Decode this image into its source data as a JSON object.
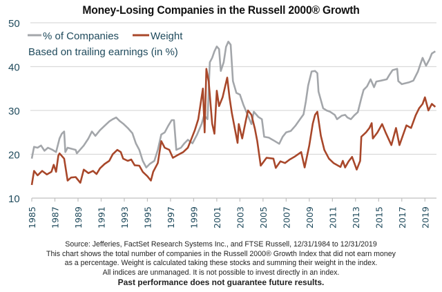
{
  "chart_data": {
    "type": "line",
    "title": "Money-Losing Companies in the Russell 2000® Growth",
    "subtitle": "Based on trailing earnings (in %)",
    "xlabel": "",
    "ylabel": "",
    "xlim": [
      1985,
      2020
    ],
    "ylim": [
      10,
      50
    ],
    "yticks": [
      10,
      20,
      30,
      40,
      50
    ],
    "ytick_labels": [
      "10",
      "20",
      "30",
      "40",
      "50"
    ],
    "xticks": [
      1985,
      1987,
      1989,
      1991,
      1993,
      1995,
      1997,
      1999,
      2001,
      2003,
      2005,
      2007,
      2009,
      2011,
      2013,
      2015,
      2017,
      2019
    ],
    "xtick_labels": [
      "1985",
      "1987",
      "1989",
      "1991",
      "1993",
      "1995",
      "1997",
      "1999",
      "2001",
      "2003",
      "2005",
      "2007",
      "2009",
      "2011",
      "2013",
      "2015",
      "2017",
      "2019"
    ],
    "grid": "horizontal",
    "legend_placement": "top-left",
    "colors": {
      "companies": "#a3a6aa",
      "weight": "#a8472a",
      "text": "#1f4a5c",
      "grid": "#d9d9d9"
    },
    "series": [
      {
        "name": "% of Companies",
        "points": [
          [
            1985.0,
            19.0
          ],
          [
            1985.2,
            21.7
          ],
          [
            1985.5,
            21.5
          ],
          [
            1985.8,
            22.0
          ],
          [
            1986.1,
            20.8
          ],
          [
            1986.4,
            21.5
          ],
          [
            1986.8,
            21.0
          ],
          [
            1987.1,
            20.5
          ],
          [
            1987.4,
            23.6
          ],
          [
            1987.6,
            24.7
          ],
          [
            1987.8,
            25.2
          ],
          [
            1987.9,
            20.5
          ],
          [
            1988.1,
            21.5
          ],
          [
            1988.8,
            21.0
          ],
          [
            1988.9,
            20.2
          ],
          [
            1989.5,
            22.0
          ],
          [
            1989.9,
            23.6
          ],
          [
            1990.2,
            25.2
          ],
          [
            1990.5,
            24.2
          ],
          [
            1990.9,
            25.5
          ],
          [
            1991.3,
            26.5
          ],
          [
            1991.7,
            27.5
          ],
          [
            1992.0,
            28.0
          ],
          [
            1992.3,
            28.4
          ],
          [
            1992.6,
            27.6
          ],
          [
            1992.9,
            27.0
          ],
          [
            1993.3,
            26.0
          ],
          [
            1993.7,
            24.8
          ],
          [
            1994.0,
            22.5
          ],
          [
            1994.3,
            21.0
          ],
          [
            1994.6,
            18.5
          ],
          [
            1994.9,
            17.0
          ],
          [
            1995.2,
            17.8
          ],
          [
            1995.6,
            18.5
          ],
          [
            1995.9,
            21.0
          ],
          [
            1996.2,
            24.5
          ],
          [
            1996.5,
            25.0
          ],
          [
            1996.8,
            26.5
          ],
          [
            1997.1,
            27.8
          ],
          [
            1997.3,
            27.8
          ],
          [
            1997.5,
            21.0
          ],
          [
            1997.9,
            21.5
          ],
          [
            1998.2,
            22.5
          ],
          [
            1998.5,
            23.3
          ],
          [
            1998.9,
            22.5
          ],
          [
            1999.3,
            24.5
          ],
          [
            1999.7,
            27.0
          ],
          [
            1999.9,
            28.9
          ],
          [
            2000.2,
            28.0
          ],
          [
            2000.4,
            41.0
          ],
          [
            2000.6,
            42.0
          ],
          [
            2000.8,
            43.5
          ],
          [
            2001.0,
            44.6
          ],
          [
            2001.2,
            44.0
          ],
          [
            2001.35,
            39.0
          ],
          [
            2001.6,
            41.0
          ],
          [
            2001.8,
            44.5
          ],
          [
            2002.0,
            45.7
          ],
          [
            2002.2,
            45.0
          ],
          [
            2002.4,
            36.7
          ],
          [
            2002.7,
            34.0
          ],
          [
            2003.0,
            33.6
          ],
          [
            2003.3,
            31.3
          ],
          [
            2003.6,
            29.4
          ],
          [
            2004.0,
            26.9
          ],
          [
            2004.2,
            29.7
          ],
          [
            2004.6,
            28.5
          ],
          [
            2004.9,
            28.0
          ],
          [
            2005.1,
            24.0
          ],
          [
            2005.5,
            23.8
          ],
          [
            2005.9,
            23.2
          ],
          [
            2006.4,
            22.4
          ],
          [
            2006.7,
            24.0
          ],
          [
            2007.0,
            25.0
          ],
          [
            2007.4,
            25.3
          ],
          [
            2007.8,
            26.5
          ],
          [
            2008.2,
            28.0
          ],
          [
            2008.5,
            29.1
          ],
          [
            2008.7,
            32.0
          ],
          [
            2008.9,
            35.7
          ],
          [
            2009.2,
            38.9
          ],
          [
            2009.5,
            39.0
          ],
          [
            2009.7,
            38.5
          ],
          [
            2009.8,
            34.3
          ],
          [
            2010.2,
            30.5
          ],
          [
            2010.5,
            30.0
          ],
          [
            2010.8,
            29.7
          ],
          [
            2011.2,
            29.0
          ],
          [
            2011.4,
            28.0
          ],
          [
            2011.8,
            28.8
          ],
          [
            2012.1,
            29.0
          ],
          [
            2012.3,
            28.4
          ],
          [
            2012.6,
            28.0
          ],
          [
            2012.9,
            28.9
          ],
          [
            2013.2,
            29.6
          ],
          [
            2013.5,
            32.8
          ],
          [
            2013.7,
            34.7
          ],
          [
            2014.0,
            35.5
          ],
          [
            2014.3,
            37.1
          ],
          [
            2014.6,
            35.3
          ],
          [
            2014.8,
            36.6
          ],
          [
            2015.2,
            36.8
          ],
          [
            2015.7,
            37.1
          ],
          [
            2015.9,
            38.0
          ],
          [
            2016.2,
            39.2
          ],
          [
            2016.6,
            39.5
          ],
          [
            2016.7,
            36.7
          ],
          [
            2017.0,
            36.0
          ],
          [
            2017.6,
            36.4
          ],
          [
            2018.0,
            36.8
          ],
          [
            2018.4,
            38.9
          ],
          [
            2018.6,
            40.5
          ],
          [
            2018.8,
            42.0
          ],
          [
            2019.1,
            40.2
          ],
          [
            2019.4,
            41.7
          ],
          [
            2019.6,
            43.0
          ],
          [
            2019.9,
            43.5
          ]
        ]
      },
      {
        "name": "Weight",
        "points": [
          [
            1985.0,
            13.0
          ],
          [
            1985.2,
            16.2
          ],
          [
            1985.5,
            15.2
          ],
          [
            1985.9,
            16.2
          ],
          [
            1986.3,
            15.4
          ],
          [
            1986.7,
            16.0
          ],
          [
            1986.9,
            17.6
          ],
          [
            1987.1,
            16.0
          ],
          [
            1987.3,
            19.7
          ],
          [
            1987.4,
            20.2
          ],
          [
            1987.8,
            19.0
          ],
          [
            1988.1,
            14.0
          ],
          [
            1988.4,
            14.7
          ],
          [
            1988.8,
            14.8
          ],
          [
            1989.2,
            13.5
          ],
          [
            1989.5,
            16.5
          ],
          [
            1989.9,
            15.7
          ],
          [
            1990.3,
            16.2
          ],
          [
            1990.6,
            15.5
          ],
          [
            1990.9,
            16.8
          ],
          [
            1991.3,
            17.8
          ],
          [
            1991.7,
            18.5
          ],
          [
            1992.0,
            20.0
          ],
          [
            1992.4,
            21.0
          ],
          [
            1992.7,
            20.5
          ],
          [
            1992.9,
            19.0
          ],
          [
            1993.3,
            18.5
          ],
          [
            1993.6,
            18.8
          ],
          [
            1993.9,
            17.5
          ],
          [
            1994.3,
            17.4
          ],
          [
            1994.6,
            16.0
          ],
          [
            1995.0,
            15.0
          ],
          [
            1995.3,
            14.0
          ],
          [
            1995.5,
            16.0
          ],
          [
            1995.9,
            18.0
          ],
          [
            1996.2,
            23.0
          ],
          [
            1996.5,
            21.5
          ],
          [
            1996.9,
            21.0
          ],
          [
            1997.2,
            19.2
          ],
          [
            1997.6,
            19.8
          ],
          [
            1998.1,
            20.5
          ],
          [
            1998.5,
            21.5
          ],
          [
            1998.8,
            23.5
          ],
          [
            1999.1,
            25.5
          ],
          [
            1999.4,
            28.0
          ],
          [
            1999.8,
            35.0
          ],
          [
            1999.95,
            25.0
          ],
          [
            2000.1,
            39.5
          ],
          [
            2000.3,
            36.6
          ],
          [
            2000.6,
            27.0
          ],
          [
            2000.8,
            24.7
          ],
          [
            2001.0,
            34.5
          ],
          [
            2001.2,
            31.0
          ],
          [
            2001.5,
            33.0
          ],
          [
            2001.9,
            37.5
          ],
          [
            2002.1,
            33.0
          ],
          [
            2002.3,
            29.4
          ],
          [
            2002.8,
            22.6
          ],
          [
            2002.9,
            26.9
          ],
          [
            2003.2,
            23.6
          ],
          [
            2003.5,
            27.5
          ],
          [
            2003.7,
            30.0
          ],
          [
            2004.0,
            29.0
          ],
          [
            2004.3,
            25.8
          ],
          [
            2004.5,
            23.0
          ],
          [
            2004.8,
            17.4
          ],
          [
            2005.3,
            19.2
          ],
          [
            2005.9,
            19.0
          ],
          [
            2006.1,
            16.9
          ],
          [
            2006.5,
            18.4
          ],
          [
            2006.9,
            18.0
          ],
          [
            2007.3,
            18.8
          ],
          [
            2007.7,
            19.4
          ],
          [
            2008.3,
            20.5
          ],
          [
            2008.6,
            17.0
          ],
          [
            2009.0,
            22.0
          ],
          [
            2009.3,
            27.0
          ],
          [
            2009.5,
            29.0
          ],
          [
            2009.7,
            29.7
          ],
          [
            2010.0,
            24.2
          ],
          [
            2010.3,
            21.0
          ],
          [
            2010.7,
            19.0
          ],
          [
            2011.1,
            18.0
          ],
          [
            2011.7,
            17.1
          ],
          [
            2011.9,
            18.5
          ],
          [
            2012.1,
            17.0
          ],
          [
            2012.4,
            18.4
          ],
          [
            2012.7,
            19.4
          ],
          [
            2013.1,
            16.5
          ],
          [
            2013.4,
            18.5
          ],
          [
            2013.5,
            24.0
          ],
          [
            2013.9,
            25.0
          ],
          [
            2014.2,
            26.0
          ],
          [
            2014.4,
            27.1
          ],
          [
            2014.5,
            23.6
          ],
          [
            2014.9,
            25.0
          ],
          [
            2015.3,
            26.9
          ],
          [
            2015.6,
            25.0
          ],
          [
            2016.1,
            22.1
          ],
          [
            2016.5,
            26.0
          ],
          [
            2016.8,
            22.1
          ],
          [
            2017.4,
            26.6
          ],
          [
            2017.8,
            26.0
          ],
          [
            2018.2,
            28.9
          ],
          [
            2018.5,
            30.5
          ],
          [
            2018.8,
            31.5
          ],
          [
            2019.0,
            33.0
          ],
          [
            2019.3,
            30.0
          ],
          [
            2019.6,
            31.5
          ],
          [
            2019.9,
            30.8
          ]
        ]
      }
    ]
  },
  "footer": {
    "source": "Source: Jefferies, FactSet Research Systems Inc., and FTSE Russell, 12/31/1984 to 12/31/2019",
    "note_line1": "This chart shows the total number of companies in the Russell 2000® Growth Index that did not earn money",
    "note_line2": "as a percentage. Weight is calculated taking these stocks and summing their weight in the index.",
    "note_line3": "All indices are unmanaged. It is not possible to invest directly in an index.",
    "disclaimer": "Past performance does not guarantee future results."
  }
}
